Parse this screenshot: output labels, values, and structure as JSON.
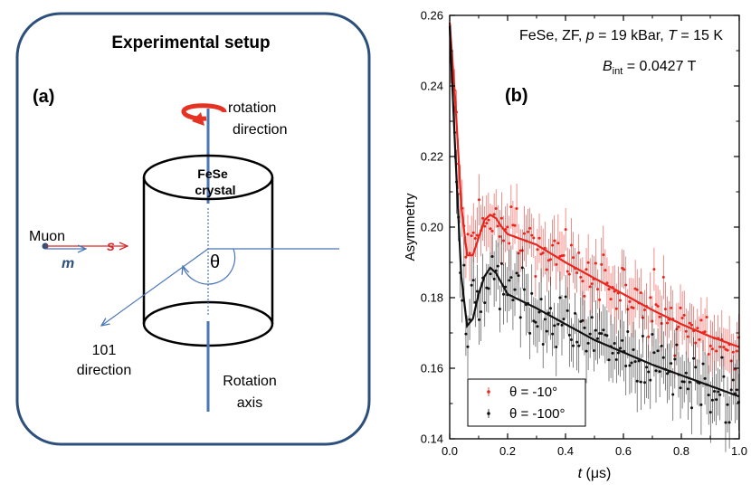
{
  "panel_a": {
    "title": "Experimental setup",
    "label": "(a)",
    "rotation_direction": [
      "rotation",
      "direction"
    ],
    "crystal": [
      "FeSe",
      "crystal"
    ],
    "muon": "Muon",
    "spin": "s",
    "momentum": "m",
    "angle": "θ",
    "direction_101": [
      "101",
      "direction"
    ],
    "rotation_axis": [
      "Rotation",
      "axis"
    ]
  },
  "panel_b": {
    "label": "(b)",
    "info_line": "FeSe, ZF, p = 19 kBar, T = 15 K",
    "info_p": "p",
    "info_T": "T",
    "info_part1": "FeSe, ZF, ",
    "info_part2": " = 19 kBar, ",
    "info_part3": " = 15 K",
    "bint_B": "B",
    "bint_sub": "int",
    "bint_value": " = 0.0427 T"
  },
  "colors": {
    "red": "#e8261e",
    "black": "#111111",
    "frame": "#2c4f7c",
    "blue_line": "#4a76b5"
  },
  "chart_data": {
    "type": "scatter",
    "xlabel_var": "t",
    "xlabel_unit": " (μs)",
    "ylabel": "Asymmetry",
    "xlim": [
      0.0,
      1.0
    ],
    "ylim": [
      0.14,
      0.26
    ],
    "x_ticks": [
      "0.0",
      "0.2",
      "0.4",
      "0.6",
      "0.8",
      "1.0"
    ],
    "y_ticks": [
      "0.14",
      "0.16",
      "0.18",
      "0.20",
      "0.22",
      "0.24",
      "0.26"
    ],
    "grid": false,
    "legend_position": "bottom-left",
    "series": [
      {
        "name": "θ = -10°",
        "color": "#e8261e",
        "fit": [
          [
            0.0,
            0.258
          ],
          [
            0.02,
            0.235
          ],
          [
            0.04,
            0.206
          ],
          [
            0.06,
            0.192
          ],
          [
            0.08,
            0.192
          ],
          [
            0.1,
            0.197
          ],
          [
            0.12,
            0.202
          ],
          [
            0.14,
            0.2035
          ],
          [
            0.16,
            0.2025
          ],
          [
            0.18,
            0.2
          ],
          [
            0.2,
            0.198
          ],
          [
            0.25,
            0.1965
          ],
          [
            0.3,
            0.195
          ],
          [
            0.4,
            0.19
          ],
          [
            0.5,
            0.1855
          ],
          [
            0.6,
            0.181
          ],
          [
            0.7,
            0.1765
          ],
          [
            0.8,
            0.1725
          ],
          [
            0.9,
            0.169
          ],
          [
            1.0,
            0.166
          ]
        ],
        "trend": [
          [
            0.0,
            0.258
          ],
          [
            0.02,
            0.235
          ],
          [
            0.04,
            0.206
          ],
          [
            0.06,
            0.193
          ],
          [
            0.1,
            0.2
          ],
          [
            0.14,
            0.203
          ],
          [
            0.2,
            0.199
          ],
          [
            0.3,
            0.195
          ],
          [
            0.4,
            0.19
          ],
          [
            0.5,
            0.1855
          ],
          [
            0.6,
            0.181
          ],
          [
            0.7,
            0.1765
          ],
          [
            0.8,
            0.1725
          ],
          [
            0.9,
            0.169
          ],
          [
            1.0,
            0.166
          ]
        ],
        "noise": 0.0055,
        "err": 0.0065
      },
      {
        "name": "θ = -100°",
        "color": "#111111",
        "fit": [
          [
            0.0,
            0.257
          ],
          [
            0.02,
            0.22
          ],
          [
            0.04,
            0.186
          ],
          [
            0.06,
            0.172
          ],
          [
            0.08,
            0.174
          ],
          [
            0.1,
            0.181
          ],
          [
            0.12,
            0.186
          ],
          [
            0.14,
            0.1885
          ],
          [
            0.16,
            0.187
          ],
          [
            0.18,
            0.184
          ],
          [
            0.2,
            0.181
          ],
          [
            0.25,
            0.179
          ],
          [
            0.3,
            0.177
          ],
          [
            0.4,
            0.1725
          ],
          [
            0.5,
            0.168
          ],
          [
            0.6,
            0.1645
          ],
          [
            0.7,
            0.161
          ],
          [
            0.8,
            0.158
          ],
          [
            0.9,
            0.155
          ],
          [
            1.0,
            0.152
          ]
        ],
        "trend": [
          [
            0.0,
            0.257
          ],
          [
            0.02,
            0.22
          ],
          [
            0.04,
            0.186
          ],
          [
            0.06,
            0.173
          ],
          [
            0.1,
            0.18
          ],
          [
            0.14,
            0.188
          ],
          [
            0.2,
            0.181
          ],
          [
            0.3,
            0.177
          ],
          [
            0.4,
            0.1725
          ],
          [
            0.5,
            0.168
          ],
          [
            0.6,
            0.1645
          ],
          [
            0.7,
            0.161
          ],
          [
            0.8,
            0.158
          ],
          [
            0.9,
            0.155
          ],
          [
            1.0,
            0.152
          ]
        ],
        "noise": 0.006,
        "err": 0.007
      }
    ]
  }
}
